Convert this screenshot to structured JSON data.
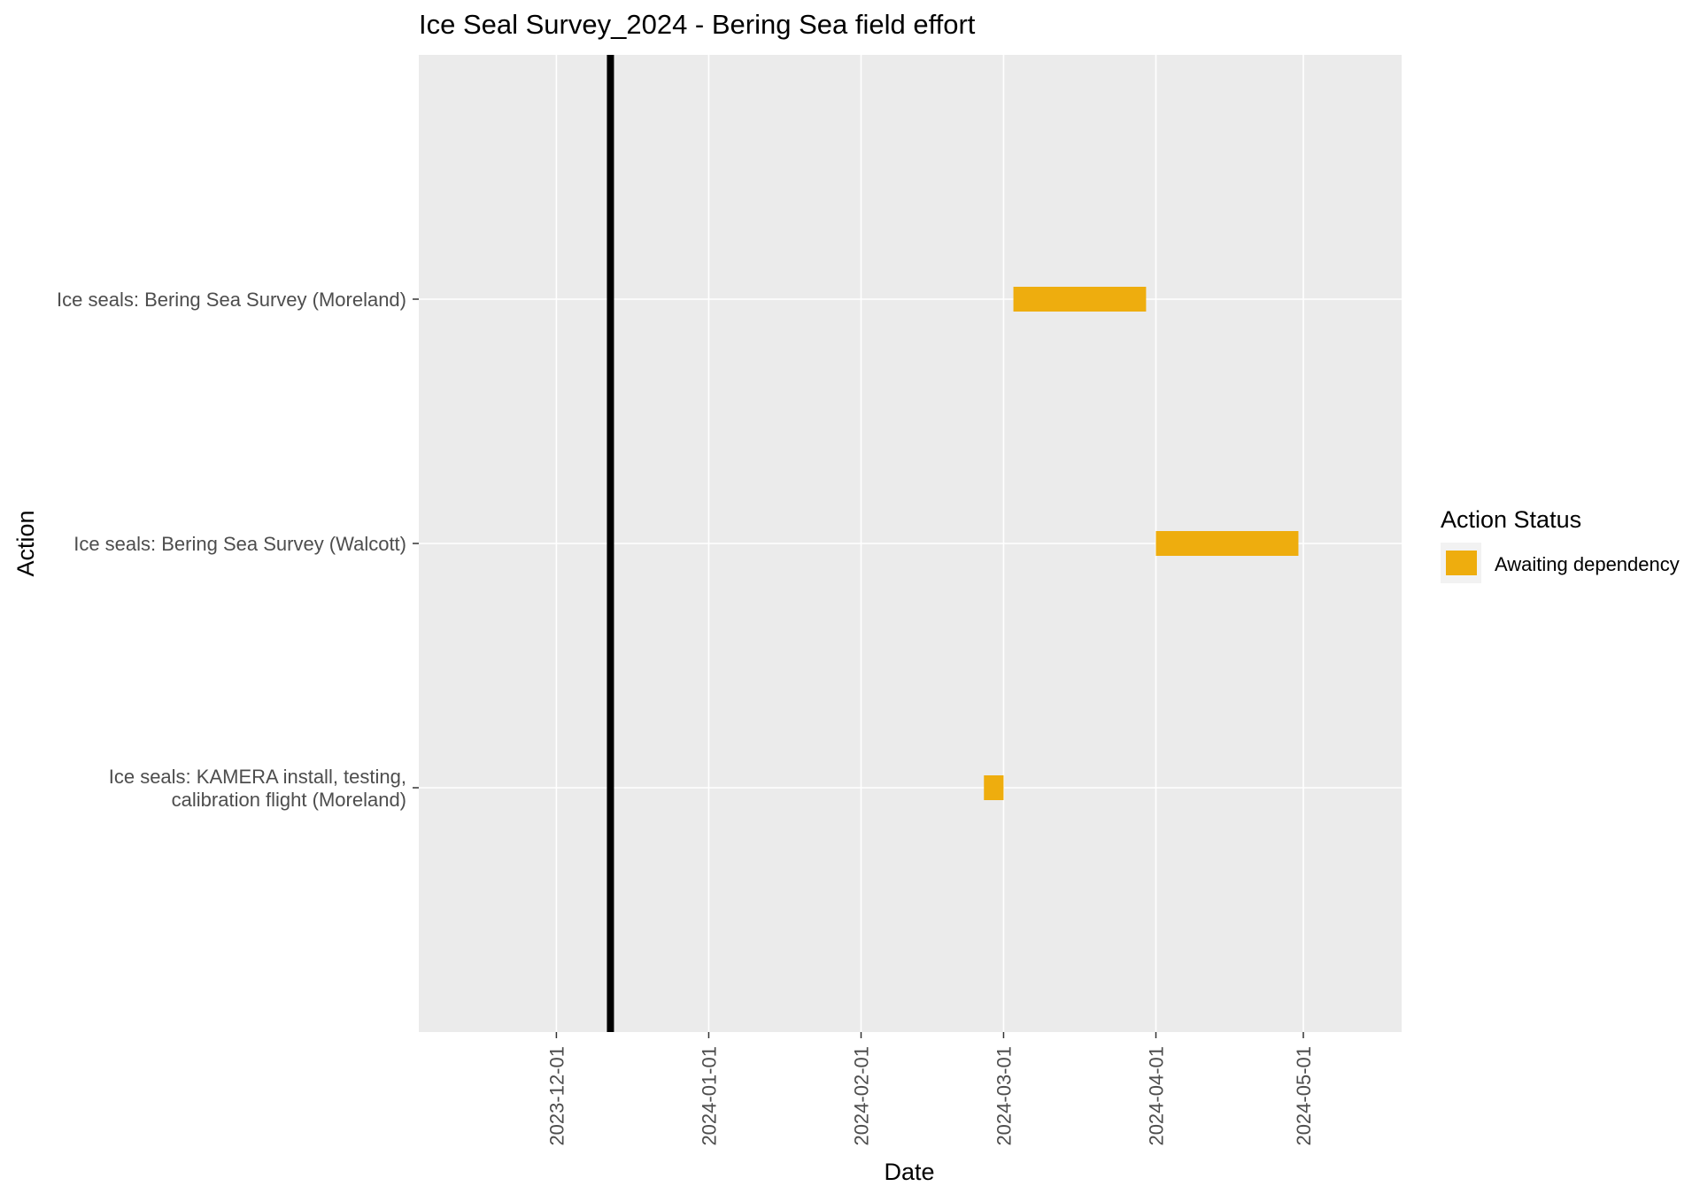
{
  "chart_data": {
    "type": "gantt",
    "title": "Ice Seal Survey_2024 - Bering Sea field effort",
    "xlabel": "Date",
    "ylabel": "Action",
    "x_range": [
      "2023-11-03",
      "2024-05-21"
    ],
    "x_ticks": [
      "2023-12-01",
      "2024-01-01",
      "2024-02-01",
      "2024-03-01",
      "2024-04-01",
      "2024-05-01"
    ],
    "today_line": "2023-12-12",
    "grid": true,
    "legend": {
      "title": "Action Status",
      "position": "right",
      "items": [
        {
          "label": "Awaiting dependency",
          "color": "#EEAD0E"
        }
      ]
    },
    "categories": [
      "Ice seals: Bering Sea Survey (Moreland)",
      "Ice seals: Bering Sea Survey (Walcott)",
      "Ice seals: KAMERA install, testing,\ncalibration flight (Moreland)"
    ],
    "tasks": [
      {
        "action": "Ice seals: Bering Sea Survey (Moreland)",
        "start": "2024-03-03",
        "end": "2024-03-30",
        "status": "Awaiting dependency"
      },
      {
        "action": "Ice seals: Bering Sea Survey (Walcott)",
        "start": "2024-04-01",
        "end": "2024-04-30",
        "status": "Awaiting dependency"
      },
      {
        "action": "Ice seals: KAMERA install, testing,\ncalibration flight (Moreland)",
        "start": "2024-02-26",
        "end": "2024-03-01",
        "status": "Awaiting dependency"
      }
    ],
    "colors": {
      "panel": "#EBEBEB",
      "grid": "#FFFFFF",
      "bar": "#EEAD0E",
      "today_line": "#000000",
      "text": "#4D4D4D",
      "title": "#000000"
    }
  }
}
